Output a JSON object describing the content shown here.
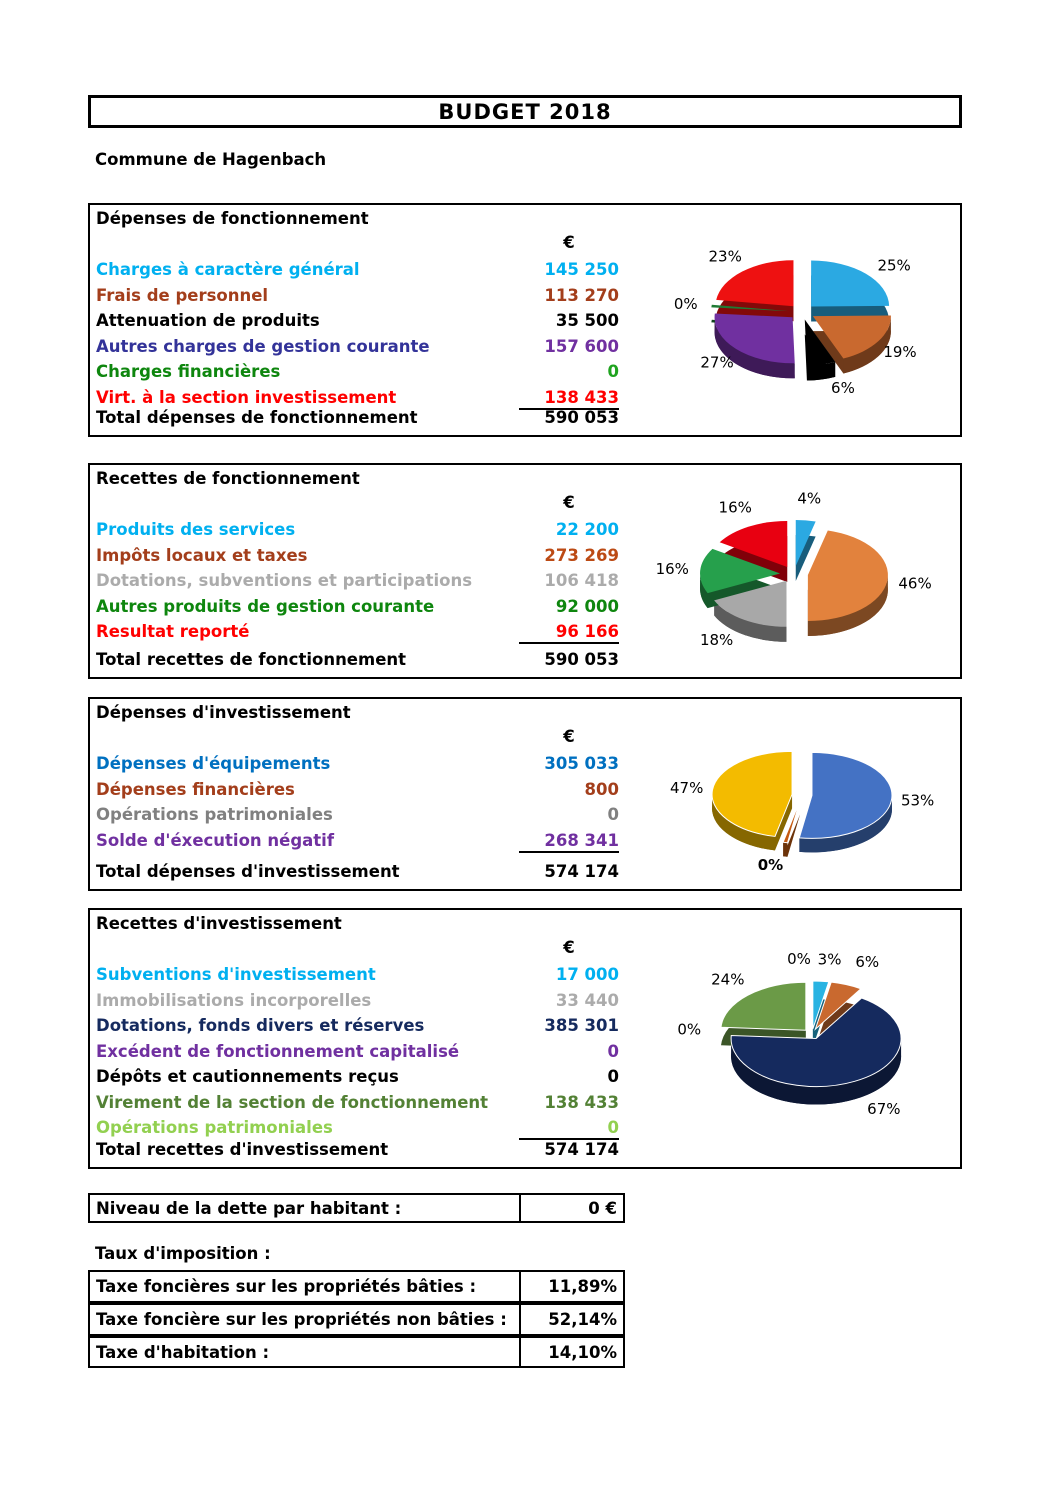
{
  "title": "BUDGET 2018",
  "subtitle": "Commune de Hagenbach",
  "sections": [
    {
      "header": "Dépenses de fonctionnement",
      "currency": "€",
      "rows": [
        {
          "label": "Charges à caractère général",
          "value": "145 250",
          "color": "#00B0F0"
        },
        {
          "label": "Frais de personnel",
          "value": "113 270",
          "color": "#A33E1B"
        },
        {
          "label": "Attenuation de produits",
          "value": "35 500",
          "color": "#000000"
        },
        {
          "label": "Autres charges de gestion courante",
          "value": "157 600",
          "color": "#333399",
          "value_color": "#7030A0"
        },
        {
          "label": "Charges financières",
          "value": "0",
          "color": "#0E860E",
          "value_color": "#1FA31F"
        },
        {
          "label": "Virt. à la section investissement",
          "value": "138 433",
          "color": "#FF0000",
          "underline": true
        }
      ],
      "total_label": "Total dépenses de fonctionnement",
      "total_value": "590 053"
    },
    {
      "header": "Recettes de fonctionnement",
      "currency": "€",
      "rows": [
        {
          "label": "Produits des services",
          "value": "22 200",
          "color": "#00B0F0"
        },
        {
          "label": "Impôts locaux et taxes",
          "value": "273 269",
          "color": "#A33E1B",
          "value_color": "#BC4A14"
        },
        {
          "label": "Dotations, subventions et participations",
          "value": "106 418",
          "color": "#ABABAB"
        },
        {
          "label": "Autres produits de gestion courante",
          "value": "92 000",
          "color": "#0E860E"
        },
        {
          "label": "Resultat reporté",
          "value": "96 166",
          "color": "#FF0000",
          "underline": true
        }
      ],
      "total_label": "Total recettes de fonctionnement",
      "total_value": "590 053"
    },
    {
      "header": "Dépenses d'investissement",
      "currency": "€",
      "rows": [
        {
          "label": "Dépenses d'équipements",
          "value": "305 033",
          "color": "#0070C0"
        },
        {
          "label": "Dépenses financières",
          "value": "800",
          "color": "#A33E1B"
        },
        {
          "label": "Opérations patrimoniales",
          "value": "0",
          "color": "#808080"
        },
        {
          "label": "Solde d'éxecution négatif",
          "value": "268 341",
          "color": "#7030A0",
          "underline": true
        }
      ],
      "total_label": "Total dépenses d'investissement",
      "total_value": "574 174"
    },
    {
      "header": "Recettes d'investissement",
      "currency": "€",
      "rows": [
        {
          "label": "Subventions d'investissement",
          "value": "17 000",
          "color": "#00B0F0"
        },
        {
          "label": "Immobilisations incorporelles",
          "value": "33 440",
          "color": "#ABABAB"
        },
        {
          "label": "Dotations, fonds divers et réserves",
          "value": "385 301",
          "color": "#152A5E"
        },
        {
          "label": "Excédent de fonctionnement capitalisé",
          "value": "0",
          "color": "#7030A0"
        },
        {
          "label": "Dépôts et cautionnements reçus",
          "value": "0",
          "color": "#000000"
        },
        {
          "label": "Virement de la section de fonctionnement",
          "value": "138 433",
          "color": "#538135"
        },
        {
          "label": "Opérations patrimoniales",
          "value": "0",
          "color": "#92D050",
          "underline": true
        }
      ],
      "total_label": "Total recettes d'investissement",
      "total_value": "574 174"
    }
  ],
  "chart_data": [
    {
      "type": "pie",
      "title": "Dépenses de fonctionnement",
      "slices": [
        {
          "name": "Charges à caractère général",
          "pct": 25,
          "label": "25%",
          "color": "#2BA9E2"
        },
        {
          "name": "Frais de personnel",
          "pct": 19,
          "label": "19%",
          "color": "#C9692F"
        },
        {
          "name": "Attenuation de produits",
          "pct": 6,
          "label": "6%",
          "color": "#000000"
        },
        {
          "name": "Autres charges de gestion courante",
          "pct": 27,
          "label": "27%",
          "color": "#7030A0"
        },
        {
          "name": "Charges financières",
          "pct": 0,
          "label": "0%",
          "color": "#1E7B34",
          "sliver": true
        },
        {
          "name": "Virt. à la section investissement",
          "pct": 23,
          "label": "23%",
          "color": "#EE1111"
        }
      ]
    },
    {
      "type": "pie",
      "title": "Recettes de fonctionnement",
      "slices": [
        {
          "name": "Produits des services",
          "pct": 4,
          "label": "4%",
          "color": "#2BA9E2"
        },
        {
          "name": "Impôts locaux et taxes",
          "pct": 46,
          "label": "46%",
          "color": "#E2823D"
        },
        {
          "name": "Dotations, subventions et participations",
          "pct": 18,
          "label": "18%",
          "color": "#A8A8A8"
        },
        {
          "name": "Autres produits de gestion courante",
          "pct": 16,
          "label": "16%",
          "color": "#26A04C"
        },
        {
          "name": "Resultat reporté",
          "pct": 16,
          "label": "16%",
          "color": "#E80011"
        }
      ]
    },
    {
      "type": "pie",
      "title": "Dépenses d'investissement",
      "slices": [
        {
          "name": "Dépenses d'équipements",
          "pct": 53,
          "label": "53%",
          "color": "#4472C4"
        },
        {
          "name": "Dépenses financières",
          "pct": 0,
          "label": "0%",
          "color": "#C55A11",
          "sliver": true,
          "labelBold": true
        },
        {
          "name": "Opérations patrimoniales",
          "pct": 0,
          "label": "",
          "color": "#A5A5A5"
        },
        {
          "name": "Solde d'éxecution négatif",
          "pct": 47,
          "label": "47%",
          "color": "#F3BB00"
        }
      ]
    },
    {
      "type": "pie",
      "title": "Recettes d'investissement",
      "slices": [
        {
          "name": "Subventions d'investissement",
          "pct": 3,
          "label": "3%",
          "color": "#29B3E2"
        },
        {
          "name": "Immobilisations incorporelles",
          "pct": 6,
          "label": "6%",
          "color": "#C9692F"
        },
        {
          "name": "Dotations, fonds divers et réserves",
          "pct": 67,
          "label": "67%",
          "color": "#152A5E"
        },
        {
          "name": "Excédent de fonctionnement capitalisé",
          "pct": 0,
          "label": "0%",
          "color": "#7030A0"
        },
        {
          "name": "Dépôts et cautionnements reçus",
          "pct": 0,
          "label": "",
          "color": "#000000"
        },
        {
          "name": "Virement de la section de fonctionnement",
          "pct": 24,
          "label": "24%",
          "color": "#6B9A47"
        },
        {
          "name": "Opérations patrimoniales",
          "pct": 0,
          "label": "0%",
          "color": "#92D050"
        }
      ]
    }
  ],
  "debt": {
    "label": "Niveau de la dette par habitant :",
    "value": "0 €"
  },
  "taxes": {
    "heading": "Taux d'imposition :",
    "rows": [
      {
        "label": "Taxe foncières sur les propriétés bâties :",
        "value": "11,89%"
      },
      {
        "label": "Taxe foncière sur les propriétés non bâties :",
        "value": "52,14%"
      },
      {
        "label": "Taxe d'habitation :",
        "value": "14,10%"
      }
    ]
  }
}
